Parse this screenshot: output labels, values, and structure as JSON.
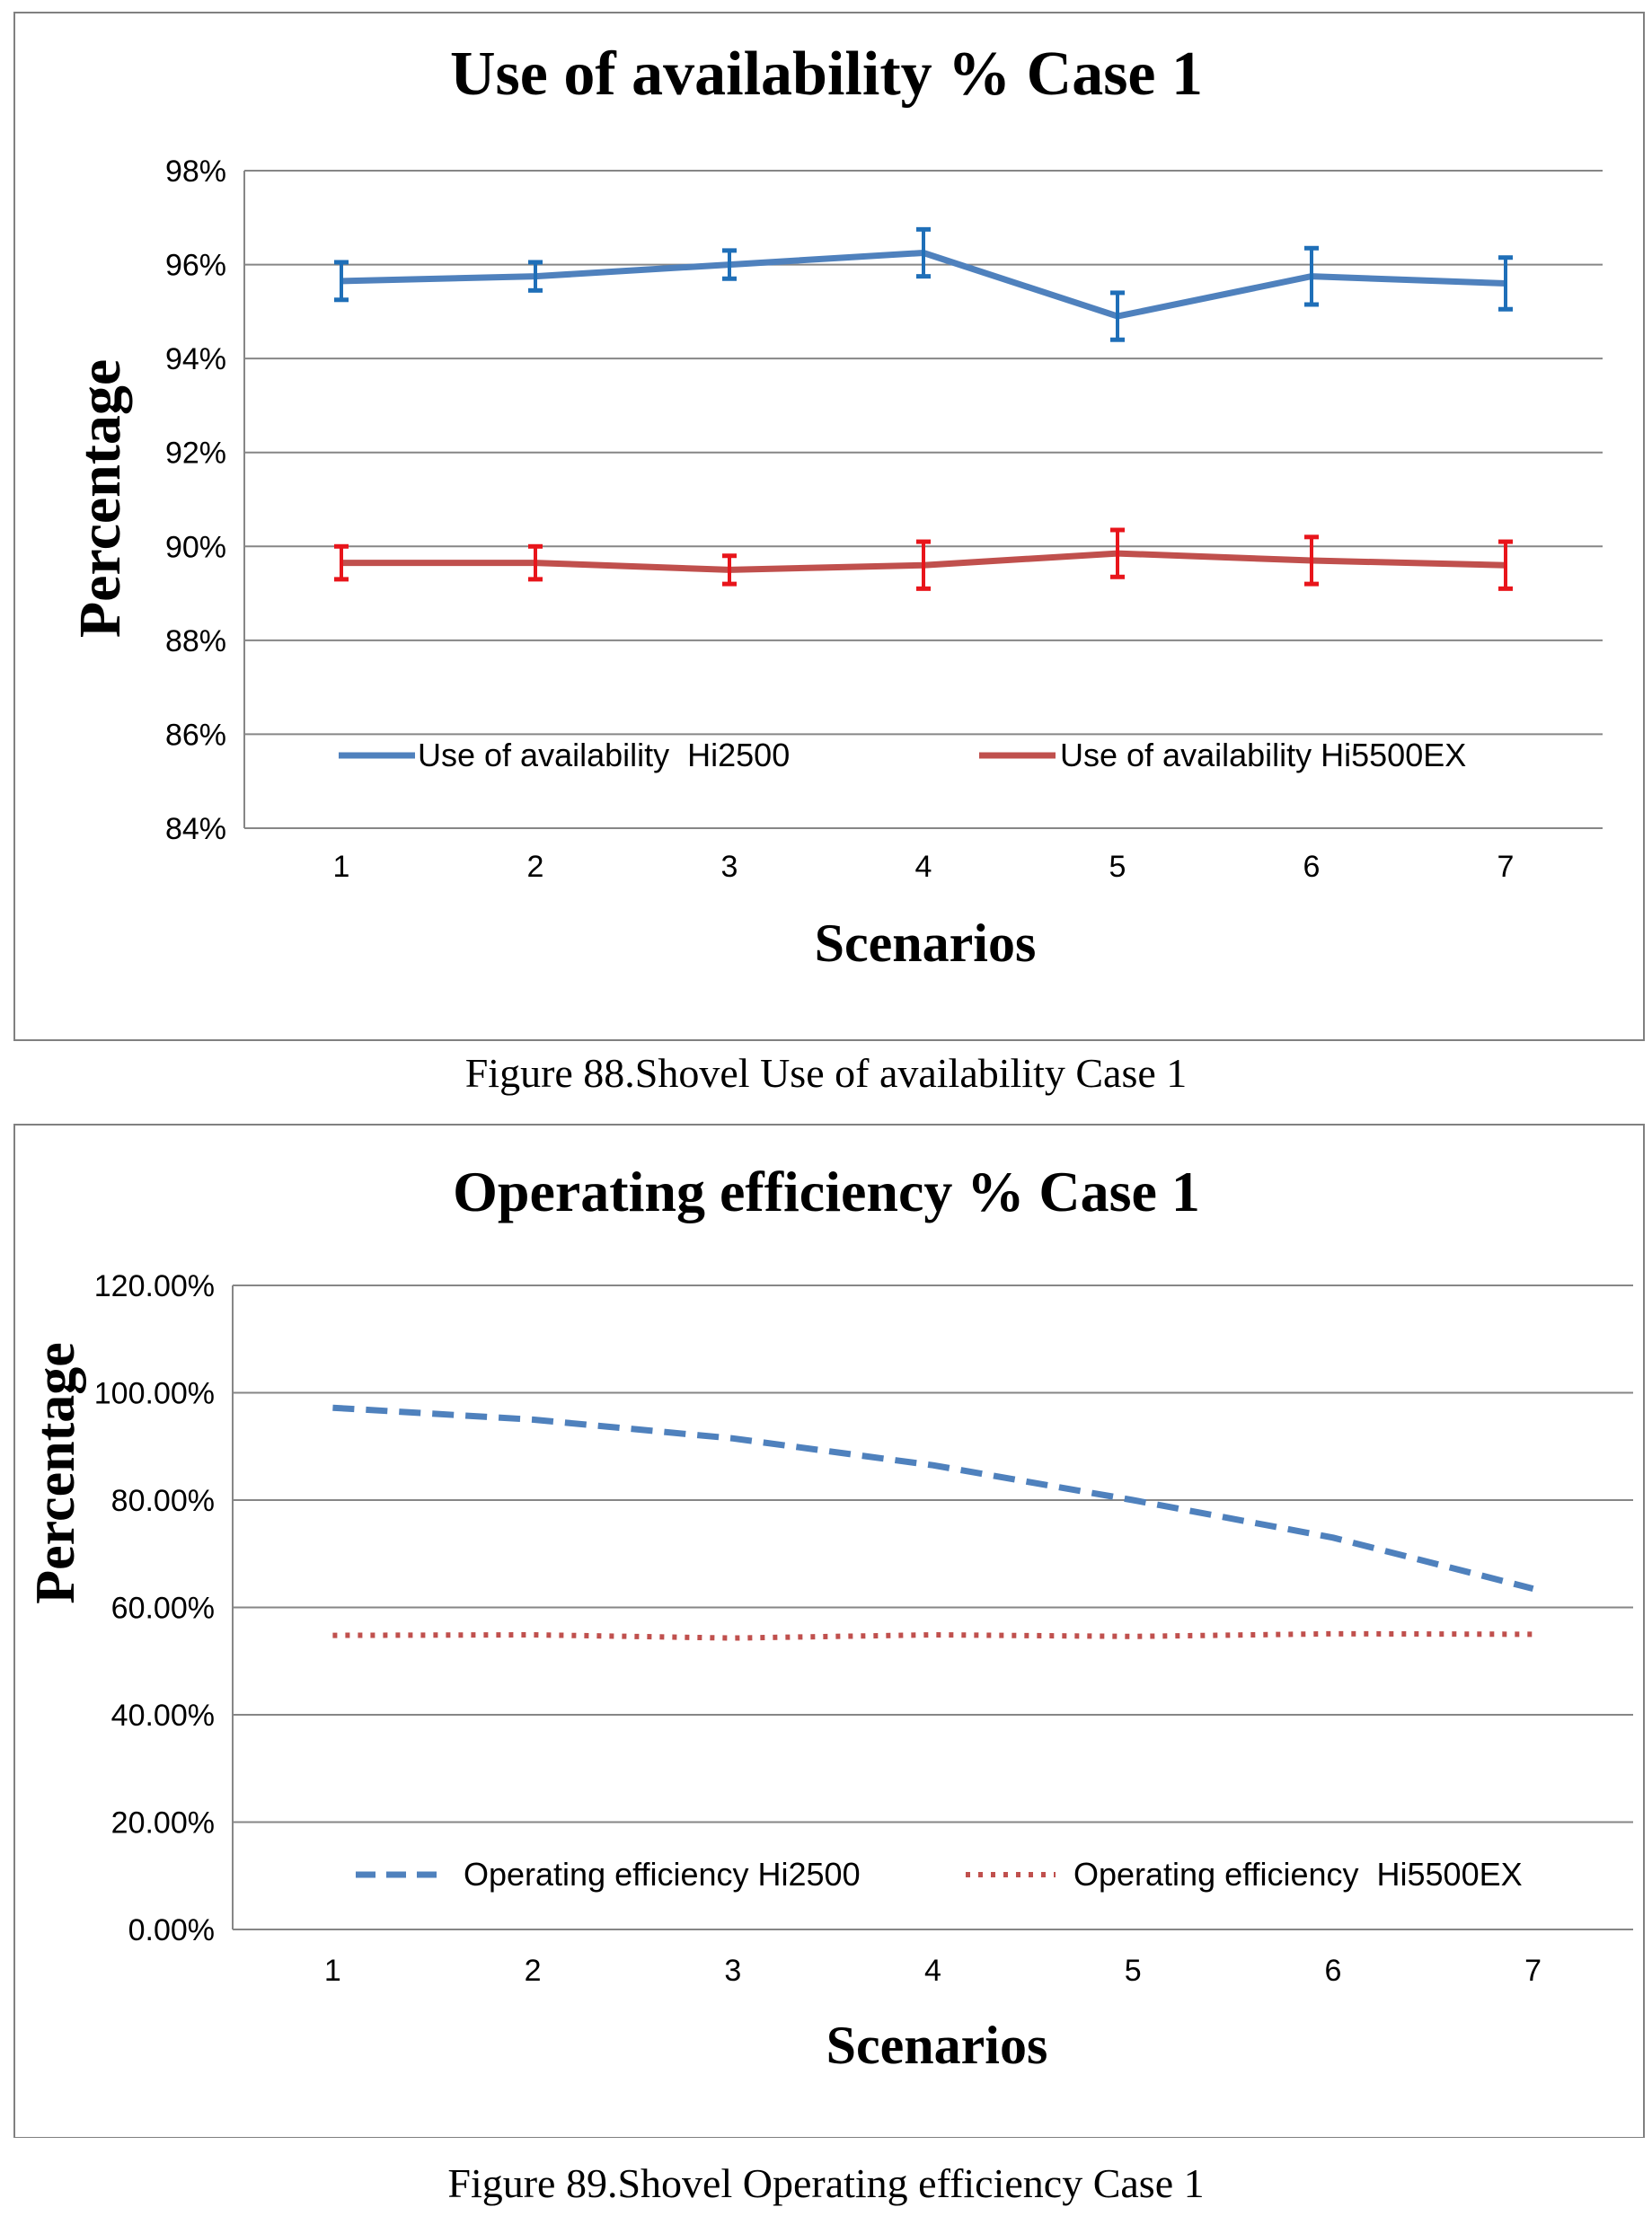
{
  "chart_data": [
    {
      "type": "line",
      "title": "Use of availability % Case 1",
      "xlabel": "Scenarios",
      "ylabel": "Percentage",
      "categories": [
        "1",
        "2",
        "3",
        "4",
        "5",
        "6",
        "7"
      ],
      "ylim": [
        84,
        98
      ],
      "y_ticks": [
        84,
        86,
        88,
        90,
        92,
        94,
        96,
        98
      ],
      "y_tick_labels": [
        "84%",
        "86%",
        "88%",
        "90%",
        "92%",
        "94%",
        "96%",
        "98%"
      ],
      "grid": true,
      "legend_position": "bottom",
      "series": [
        {
          "name": "Use of availability  Hi2500",
          "color": "#4f81bd",
          "error_color": "#1f6fb8",
          "style": "solid",
          "values": [
            95.65,
            95.75,
            96.0,
            96.25,
            94.9,
            95.75,
            95.6
          ],
          "errors": [
            0.4,
            0.3,
            0.3,
            0.5,
            0.5,
            0.6,
            0.55
          ]
        },
        {
          "name": "Use of availability Hi5500EX",
          "color": "#c0504d",
          "error_color": "#e8151b",
          "style": "solid",
          "values": [
            89.65,
            89.65,
            89.5,
            89.6,
            89.85,
            89.7,
            89.6
          ],
          "errors": [
            0.35,
            0.35,
            0.3,
            0.5,
            0.5,
            0.5,
            0.5
          ]
        }
      ],
      "caption": "Figure 88.Shovel Use of availability Case 1"
    },
    {
      "type": "line",
      "title": "Operating efficiency % Case 1",
      "xlabel": "Scenarios",
      "ylabel": "Percentage",
      "categories": [
        "1",
        "2",
        "3",
        "4",
        "5",
        "6",
        "7"
      ],
      "ylim": [
        0,
        120
      ],
      "y_ticks": [
        0,
        20,
        40,
        60,
        80,
        100,
        120
      ],
      "y_tick_labels": [
        "0.00%",
        "20.00%",
        "40.00%",
        "60.00%",
        "80.00%",
        "100.00%",
        "120.00%"
      ],
      "grid": true,
      "legend_position": "bottom",
      "series": [
        {
          "name": "Operating efficiency Hi2500",
          "color": "#4f81bd",
          "style": "dashed",
          "values": [
            97.2,
            95.0,
            91.5,
            86.5,
            80.0,
            73.0,
            63.5
          ]
        },
        {
          "name": "Operating efficiency  Hi5500EX",
          "color": "#c0504d",
          "style": "dotted",
          "values": [
            54.8,
            54.9,
            54.3,
            54.9,
            54.6,
            55.1,
            55.0
          ]
        }
      ],
      "caption": "Figure 89.Shovel Operating efficiency Case 1"
    }
  ]
}
